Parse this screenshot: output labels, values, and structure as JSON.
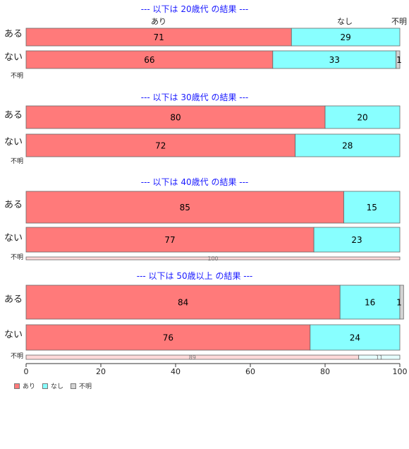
{
  "chart_data": {
    "type": "bar",
    "orientation": "horizontal-stacked",
    "series_labels": [
      "あり",
      "なし",
      "不明"
    ],
    "colors": {
      "あり": "#ff7a7a",
      "なし": "#88ffff",
      "不明": "#d3d3d3"
    },
    "top_labels": [
      "あり",
      "なし",
      "不明"
    ],
    "xlim": [
      0,
      100
    ],
    "x_ticks": [
      0,
      20,
      40,
      60,
      80,
      100
    ],
    "legend_position": "bottom-left",
    "groups": [
      {
        "title": "--- 以下は 20歳代 の結果 ---",
        "rows": [
          {
            "label": "ある",
            "values": [
              71,
              29,
              0
            ],
            "value_labels": [
              "71",
              "29",
              ""
            ]
          },
          {
            "label": "ない",
            "values": [
              66,
              33,
              1
            ],
            "value_labels": [
              "66",
              "33",
              "1"
            ]
          },
          {
            "label": "不明",
            "values": [
              0,
              0,
              0
            ],
            "value_labels": [
              "",
              "",
              ""
            ]
          }
        ]
      },
      {
        "title": "--- 以下は 30歳代 の結果 ---",
        "rows": [
          {
            "label": "ある",
            "values": [
              80,
              20,
              0
            ],
            "value_labels": [
              "80",
              "20",
              ""
            ]
          },
          {
            "label": "ない",
            "values": [
              72,
              28,
              0
            ],
            "value_labels": [
              "72",
              "28",
              ""
            ]
          },
          {
            "label": "不明",
            "values": [
              0,
              0,
              0
            ],
            "value_labels": [
              "",
              "",
              ""
            ]
          }
        ]
      },
      {
        "title": "--- 以下は 40歳代 の結果 ---",
        "rows": [
          {
            "label": "ある",
            "values": [
              85,
              15,
              0
            ],
            "value_labels": [
              "85",
              "15",
              ""
            ]
          },
          {
            "label": "ない",
            "values": [
              77,
              23,
              0
            ],
            "value_labels": [
              "77",
              "23",
              ""
            ]
          },
          {
            "label": "不明",
            "values": [
              100,
              0,
              0
            ],
            "value_labels": [
              "100",
              "",
              ""
            ]
          }
        ]
      },
      {
        "title": "--- 以下は 50歳以上 の結果 ---",
        "rows": [
          {
            "label": "ある",
            "values": [
              84,
              16,
              1
            ],
            "value_labels": [
              "84",
              "16",
              "1"
            ]
          },
          {
            "label": "ない",
            "values": [
              76,
              24,
              0
            ],
            "value_labels": [
              "76",
              "24",
              ""
            ]
          },
          {
            "label": "不明",
            "values": [
              89,
              11,
              0
            ],
            "value_labels": [
              "89",
              "11",
              ""
            ]
          }
        ]
      }
    ]
  }
}
